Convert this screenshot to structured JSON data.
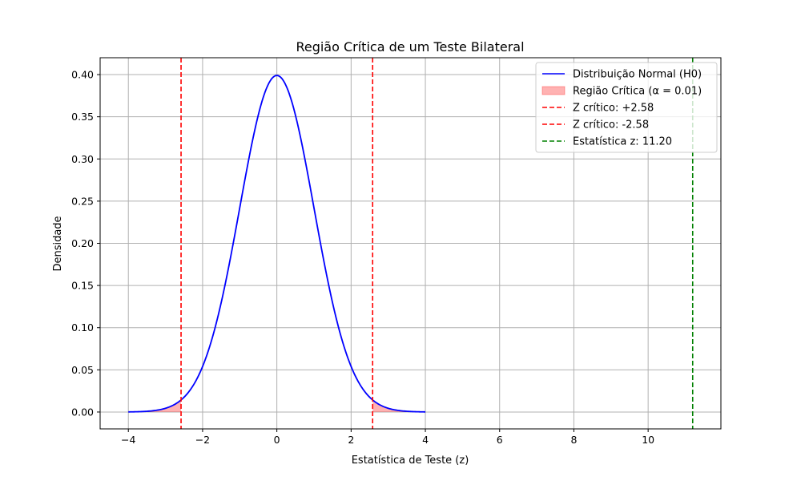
{
  "chart_data": {
    "type": "line",
    "title": "Região Crítica de um Teste Bilateral",
    "xlabel": "Estatística de Teste (z)",
    "ylabel": "Densidade",
    "xlim": [
      -4.76,
      11.96
    ],
    "ylim": [
      -0.02,
      0.42
    ],
    "xticks": [
      -4,
      -2,
      0,
      2,
      4,
      6,
      8,
      10
    ],
    "xtick_labels": [
      "−4",
      "−2",
      "0",
      "2",
      "4",
      "6",
      "8",
      "10"
    ],
    "yticks": [
      0.0,
      0.05,
      0.1,
      0.15,
      0.2,
      0.25,
      0.3,
      0.35,
      0.4
    ],
    "ytick_labels": [
      "0.00",
      "0.05",
      "0.10",
      "0.15",
      "0.20",
      "0.25",
      "0.30",
      "0.35",
      "0.40"
    ],
    "grid": true,
    "legend_position": "top-right",
    "curve": {
      "name": "Distribuição Normal (H0)",
      "color": "#0000ff",
      "distribution": "normal",
      "mean": 0,
      "std": 1,
      "x_range": [
        -4,
        4
      ]
    },
    "critical_region": {
      "name": "Região Crítica (α = 0.01)",
      "color": "#ff0000",
      "opacity": 0.3,
      "left_tail": [
        -4,
        -2.58
      ],
      "right_tail": [
        2.58,
        4
      ]
    },
    "vlines": [
      {
        "name": "Z crítico: +2.58",
        "x": 2.58,
        "color": "#ff0000"
      },
      {
        "name": "Z crítico: -2.58",
        "x": -2.58,
        "color": "#ff0000"
      },
      {
        "name": "Estatística z: 11.20",
        "x": 11.2,
        "color": "#008000"
      }
    ]
  }
}
